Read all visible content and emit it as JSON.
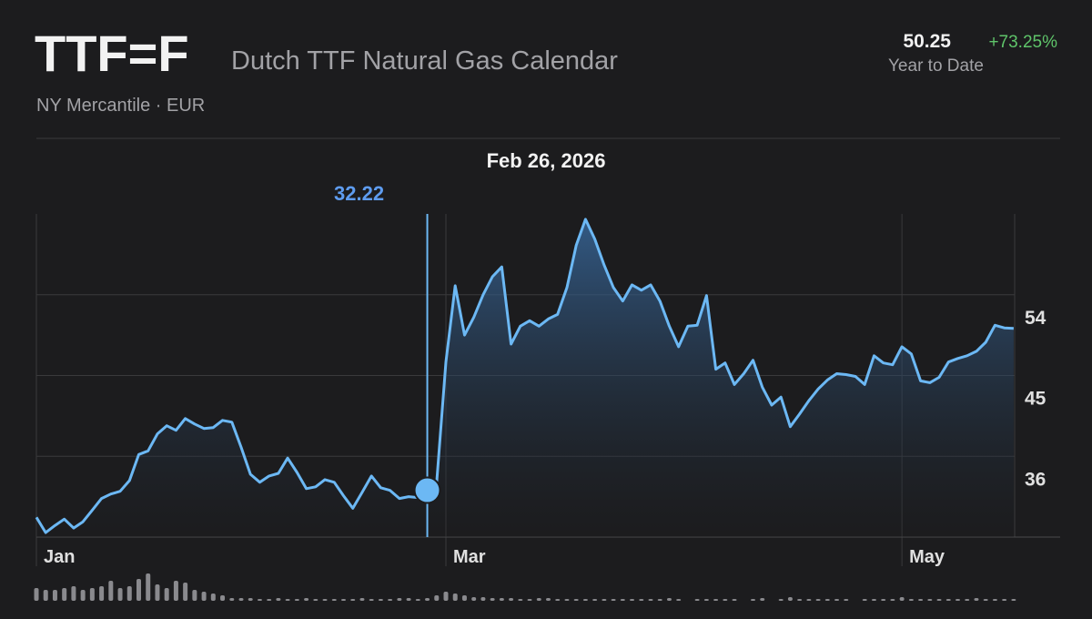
{
  "header": {
    "symbol": "TTF=F",
    "name": "Dutch TTF Natural Gas Calendar",
    "exchange": "NY Mercantile · EUR",
    "price": "50.25",
    "change": "+73.25%",
    "period": "Year to Date"
  },
  "chart_data": {
    "type": "area",
    "color": "#6cb8f4",
    "values": [
      29.2,
      27.5,
      28.3,
      29.0,
      28.0,
      28.7,
      30.0,
      31.3,
      31.8,
      32.1,
      33.3,
      36.2,
      36.6,
      38.5,
      39.4,
      38.9,
      40.2,
      39.6,
      39.1,
      39.2,
      40.0,
      39.8,
      37.0,
      34.0,
      33.1,
      33.8,
      34.1,
      35.8,
      34.2,
      32.4,
      32.6,
      33.4,
      33.1,
      31.6,
      30.2,
      32.0,
      33.8,
      32.5,
      32.2,
      31.3,
      31.5,
      31.4,
      32.22,
      33.0,
      46.5,
      55.0,
      49.5,
      51.5,
      54.0,
      56.0,
      57.1,
      48.5,
      50.5,
      51.1,
      50.5,
      51.3,
      51.8,
      54.8,
      59.5,
      62.4,
      60.2,
      57.3,
      54.8,
      53.3,
      55.1,
      54.5,
      55.1,
      53.3,
      50.5,
      48.2,
      50.5,
      50.6,
      53.9,
      45.7,
      46.4,
      44.0,
      45.2,
      46.7,
      43.7,
      41.7,
      42.6,
      39.3,
      40.7,
      42.2,
      43.5,
      44.5,
      45.2,
      45.1,
      44.9,
      44.0,
      47.2,
      46.4,
      46.2,
      48.2,
      47.4,
      44.4,
      44.2,
      44.8,
      46.5,
      46.9,
      47.2,
      47.7,
      48.7,
      50.6,
      50.3,
      50.25
    ],
    "volume": [
      14,
      12,
      12,
      14,
      16,
      12,
      14,
      16,
      22,
      14,
      16,
      24,
      30,
      18,
      14,
      22,
      20,
      12,
      10,
      8,
      6,
      3,
      3,
      3,
      2,
      2,
      3,
      2,
      2,
      3,
      2,
      2,
      2,
      2,
      2,
      3,
      2,
      2,
      2,
      3,
      3,
      2,
      3,
      6,
      10,
      8,
      6,
      4,
      4,
      3,
      3,
      3,
      2,
      2,
      3,
      3,
      2,
      2,
      2,
      2,
      2,
      2,
      2,
      2,
      2,
      2,
      2,
      2,
      3,
      2,
      0,
      2,
      2,
      2,
      2,
      2,
      0,
      2,
      3,
      0,
      2,
      4,
      2,
      2,
      2,
      2,
      2,
      2,
      0,
      2,
      2,
      2,
      2,
      4,
      2,
      2,
      2,
      2,
      2,
      2,
      2,
      3,
      2,
      2,
      2,
      2
    ],
    "xlim": [
      0,
      110
    ],
    "xticks": [
      {
        "value": 0,
        "label": "Jan"
      },
      {
        "value": 44,
        "label": "Mar"
      },
      {
        "value": 93,
        "label": "May"
      }
    ],
    "ylim": [
      27,
      63
    ],
    "yticks": [
      36,
      45,
      54
    ],
    "grid": true,
    "highlight": {
      "label": "Feb 26, 2026",
      "value": 32.22,
      "color": "#5e9cf0"
    }
  }
}
